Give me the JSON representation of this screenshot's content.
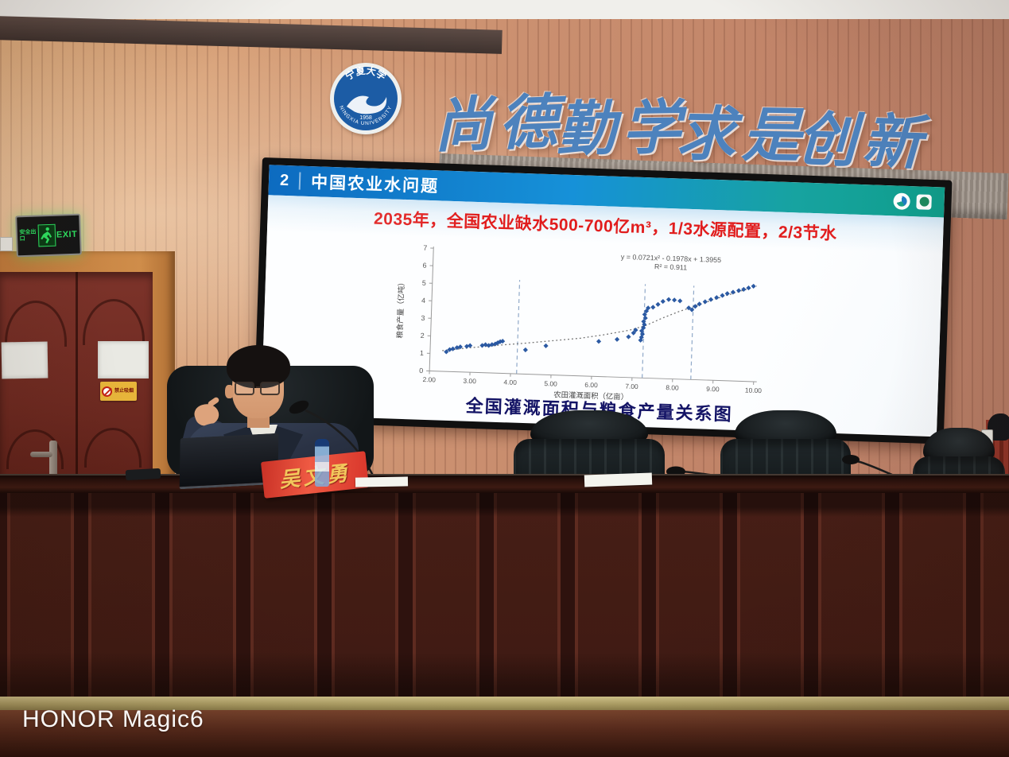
{
  "scene": {
    "watermark": "HONOR Magic6",
    "calligraphy": [
      "尚德",
      "勤学",
      "求是",
      "创新"
    ],
    "exit_sign": {
      "left_text": "安全出口",
      "right_text": "EXIT"
    },
    "no_smoking_sign": "禁止吸烟",
    "name_placard": "吴文勇",
    "university_logo": {
      "chinese": "宁夏大学",
      "english": "NINGXIA UNIVERSITY",
      "year": "1958"
    }
  },
  "slide": {
    "section_number": "2",
    "section_title": "中国农业水问题",
    "headline": "2035年，全国农业缺水500-700亿m³，1/3水源配置，2/3节水",
    "caption": "全国灌溉面积与粮食产量关系图"
  },
  "chart_data": {
    "type": "scatter",
    "title": "全国灌溉面积与粮食产量关系图",
    "equation": "y = 0.0721x² - 0.1978x + 1.3955",
    "r_squared": "R² = 0.911",
    "xlabel": "农田灌溉面积（亿亩）",
    "ylabel": "粮食产量（亿吨）",
    "xlim": [
      2,
      10
    ],
    "ylim": [
      0,
      7
    ],
    "x_ticks": [
      "2.00",
      "3.00",
      "4.00",
      "5.00",
      "6.00",
      "7.00",
      "8.00",
      "9.00",
      "10.00"
    ],
    "y_ticks": [
      0,
      1,
      2,
      3,
      4,
      5,
      6,
      7
    ],
    "grid": false,
    "legend": "none",
    "point_color": "#21519e",
    "dashed_vlines": [
      4.15,
      7.25,
      8.45
    ],
    "points": [
      [
        2.4,
        1.12
      ],
      [
        2.48,
        1.25
      ],
      [
        2.56,
        1.3
      ],
      [
        2.66,
        1.38
      ],
      [
        2.74,
        1.43
      ],
      [
        2.9,
        1.47
      ],
      [
        2.98,
        1.52
      ],
      [
        3.28,
        1.55
      ],
      [
        3.36,
        1.6
      ],
      [
        3.44,
        1.56
      ],
      [
        3.52,
        1.62
      ],
      [
        3.6,
        1.66
      ],
      [
        3.66,
        1.73
      ],
      [
        3.72,
        1.8
      ],
      [
        3.78,
        1.83
      ],
      [
        4.35,
        1.38
      ],
      [
        4.85,
        1.65
      ],
      [
        6.15,
        2.0
      ],
      [
        6.6,
        2.15
      ],
      [
        6.88,
        2.32
      ],
      [
        7.0,
        2.55
      ],
      [
        7.05,
        2.72
      ],
      [
        7.18,
        2.15
      ],
      [
        7.2,
        2.32
      ],
      [
        7.22,
        2.5
      ],
      [
        7.2,
        2.68
      ],
      [
        7.24,
        2.86
      ],
      [
        7.26,
        3.05
      ],
      [
        7.24,
        3.22
      ],
      [
        7.28,
        3.42
      ],
      [
        7.26,
        3.62
      ],
      [
        7.3,
        3.82
      ],
      [
        7.34,
        4.0
      ],
      [
        7.46,
        4.05
      ],
      [
        7.58,
        4.22
      ],
      [
        7.7,
        4.4
      ],
      [
        7.84,
        4.52
      ],
      [
        7.98,
        4.5
      ],
      [
        8.12,
        4.46
      ],
      [
        8.34,
        4.08
      ],
      [
        8.42,
        3.98
      ],
      [
        8.5,
        4.18
      ],
      [
        8.6,
        4.32
      ],
      [
        8.74,
        4.46
      ],
      [
        8.88,
        4.6
      ],
      [
        9.02,
        4.72
      ],
      [
        9.16,
        4.85
      ],
      [
        9.28,
        4.97
      ],
      [
        9.42,
        5.06
      ],
      [
        9.56,
        5.16
      ],
      [
        9.68,
        5.24
      ],
      [
        9.8,
        5.33
      ],
      [
        9.92,
        5.44
      ]
    ],
    "trendline": {
      "style": "dotted",
      "points": [
        [
          2.3,
          1.18
        ],
        [
          3,
          1.4
        ],
        [
          3.7,
          1.6
        ],
        [
          4.3,
          1.75
        ],
        [
          5,
          1.95
        ],
        [
          5.7,
          2.15
        ],
        [
          6.3,
          2.4
        ],
        [
          6.9,
          2.7
        ],
        [
          7.3,
          3.0
        ],
        [
          7.7,
          3.45
        ],
        [
          8.1,
          3.85
        ],
        [
          8.5,
          4.2
        ],
        [
          9,
          4.65
        ],
        [
          9.5,
          5.05
        ],
        [
          10,
          5.45
        ]
      ]
    }
  }
}
